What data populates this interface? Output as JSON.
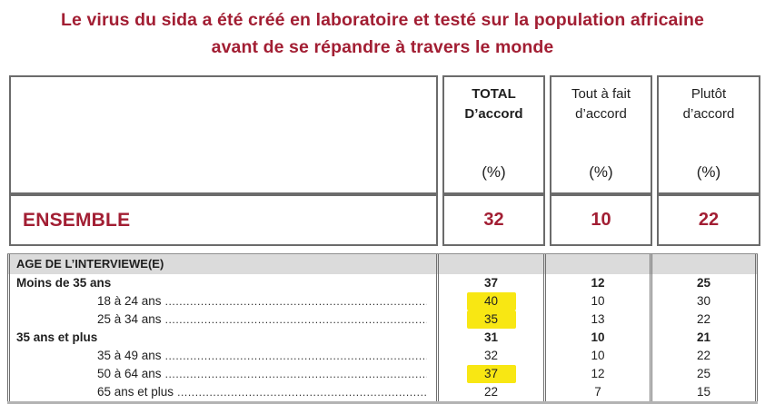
{
  "title": {
    "line1": "Le virus du sida a été créé en laboratoire et testé sur la population africaine",
    "line2": "avant de se répandre à travers le monde"
  },
  "table": {
    "columns": [
      {
        "line1": "TOTAL",
        "line2": "D’accord",
        "unit": "(%)"
      },
      {
        "line1": "Tout à fait",
        "line2": "d’accord",
        "unit": "(%)"
      },
      {
        "line1": "Plutôt",
        "line2": "d’accord",
        "unit": "(%)"
      }
    ],
    "ensemble": {
      "label": "ENSEMBLE",
      "values": [
        "32",
        "10",
        "22"
      ]
    },
    "age_section": {
      "header": "AGE DE L’INTERVIEWE(E)",
      "rows": [
        {
          "label": "Moins de 35 ans",
          "indent": false,
          "bold": true,
          "highlighted_total": false,
          "values": [
            "37",
            "12",
            "25"
          ]
        },
        {
          "label": "18 à 24 ans",
          "indent": true,
          "bold": false,
          "highlighted_total": true,
          "values": [
            "40",
            "10",
            "30"
          ]
        },
        {
          "label": "25 à 34 ans",
          "indent": true,
          "bold": false,
          "highlighted_total": true,
          "values": [
            "35",
            "13",
            "22"
          ]
        },
        {
          "label": "35 ans et plus",
          "indent": false,
          "bold": true,
          "highlighted_total": false,
          "values": [
            "31",
            "10",
            "21"
          ]
        },
        {
          "label": "35 à 49 ans",
          "indent": true,
          "bold": false,
          "highlighted_total": false,
          "values": [
            "32",
            "10",
            "22"
          ]
        },
        {
          "label": "50 à 64 ans",
          "indent": true,
          "bold": false,
          "highlighted_total": true,
          "values": [
            "37",
            "12",
            "25"
          ]
        },
        {
          "label": "65 ans et plus",
          "indent": true,
          "bold": false,
          "highlighted_total": false,
          "values": [
            "22",
            "7",
            "15"
          ]
        }
      ]
    }
  },
  "colors": {
    "accent_red": "#A21E33",
    "highlight_yellow": "#F8E713",
    "band_gray": "#DBDBDB",
    "border_gray": "#6B6B6B"
  }
}
